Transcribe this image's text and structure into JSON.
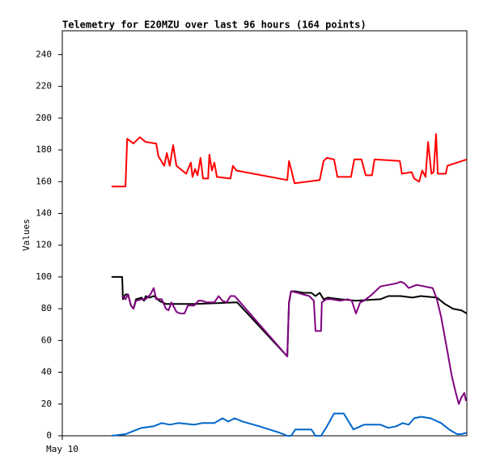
{
  "chart_data": {
    "type": "line",
    "title": "Telemetry for E20MZU over last 96 hours (164 points)",
    "y_label": "Values",
    "xlim": [
      0,
      96
    ],
    "xticks": [
      {
        "value": 0,
        "label": "May 10"
      }
    ],
    "ylim": [
      0,
      255
    ],
    "yticks": [
      0,
      20,
      40,
      60,
      80,
      100,
      120,
      140,
      160,
      180,
      200,
      220,
      240
    ],
    "grid": false,
    "series": [
      {
        "color": "#ff0000",
        "x": [
          11.7,
          15.0,
          15.4,
          16.9,
          18.4,
          19.8,
          22.3,
          22.8,
          24.2,
          24.8,
          25.5,
          26.3,
          27.1,
          29.4,
          30.5,
          30.9,
          31.5,
          32.1,
          32.8,
          33.4,
          34.6,
          34.9,
          35.5,
          36.1,
          36.7,
          39.9,
          40.5,
          41.3,
          53.4,
          53.8,
          54.3,
          55.1,
          61.1,
          62.0,
          62.8,
          64.5,
          65.3,
          68.5,
          69.3,
          71.0,
          72.0,
          73.5,
          74.1,
          80.1,
          80.6,
          82.9,
          83.5,
          84.7,
          85.4,
          86.2,
          86.8,
          87.6,
          88.1,
          88.7,
          89.1,
          91.0,
          91.4,
          93.7,
          96.0
        ],
        "values": [
          157,
          157,
          187,
          184,
          188,
          185,
          184,
          176,
          170,
          178,
          170,
          183,
          170,
          165,
          172,
          163,
          168,
          164,
          175,
          162,
          162,
          177,
          167,
          172,
          163,
          162,
          170,
          167,
          161,
          173,
          168,
          159,
          161,
          173,
          175,
          174,
          163,
          163,
          174,
          174,
          164,
          164,
          174,
          173,
          165,
          166,
          162,
          160,
          167,
          163,
          185,
          165,
          166,
          190,
          165,
          165,
          170,
          172,
          174
        ]
      },
      {
        "color": "#000000",
        "x": [
          11.7,
          14.2,
          14.4,
          15.0,
          15.6,
          16.3,
          16.9,
          17.5,
          18.8,
          19.4,
          19.8,
          20.7,
          21.7,
          22.3,
          23.0,
          23.8,
          24.6,
          31.3,
          41.5,
          53.4,
          53.8,
          54.3,
          55.3,
          57.2,
          59.1,
          60.1,
          61.1,
          62.0,
          63.0,
          65.9,
          69.7,
          75.5,
          77.4,
          80.3,
          83.1,
          85.1,
          88.9,
          90.8,
          92.7,
          94.7,
          96.0
        ],
        "values": [
          100,
          100,
          86,
          89,
          89,
          82,
          80,
          86,
          87,
          85,
          88,
          87,
          88,
          87,
          85,
          84,
          83,
          83,
          84,
          50,
          84,
          91,
          91,
          90,
          90,
          88,
          90,
          86,
          87,
          86,
          85,
          86,
          88,
          88,
          87,
          88,
          87,
          83,
          80,
          79,
          77
        ]
      },
      {
        "color": "#800080",
        "x": [
          14.2,
          15.0,
          15.6,
          16.3,
          16.9,
          17.5,
          18.8,
          19.8,
          20.9,
          21.7,
          22.3,
          23.6,
          24.6,
          25.2,
          25.9,
          26.7,
          27.1,
          28.0,
          29.0,
          29.8,
          31.3,
          32.3,
          33.2,
          34.2,
          36.1,
          37.1,
          38.0,
          39.0,
          39.9,
          40.9,
          41.9,
          53.4,
          53.8,
          54.3,
          55.9,
          57.2,
          58.6,
          59.7,
          60.1,
          61.4,
          61.6,
          62.6,
          63.9,
          65.9,
          67.8,
          68.7,
          69.7,
          70.7,
          71.6,
          73.5,
          75.5,
          77.4,
          79.3,
          80.3,
          81.2,
          82.2,
          84.1,
          86.0,
          87.9,
          88.9,
          89.9,
          91.2,
          92.4,
          93.3,
          94.1,
          94.7,
          95.4,
          95.8
        ],
        "values": [
          88,
          86,
          89,
          82,
          80,
          85,
          86,
          86,
          89,
          93,
          86,
          86,
          80,
          79,
          84,
          80,
          78,
          77,
          77,
          82,
          82,
          85,
          85,
          84,
          84,
          88,
          85,
          84,
          88,
          88,
          85,
          50,
          84,
          91,
          90,
          89,
          88,
          85,
          66,
          66,
          84,
          86,
          86,
          85,
          86,
          85,
          77,
          84,
          85,
          89,
          94,
          95,
          96,
          97,
          96,
          93,
          95,
          94,
          93,
          86,
          75,
          56,
          38,
          28,
          20,
          24,
          27,
          22
        ]
      },
      {
        "color": "#0066cc",
        "x": [
          11.7,
          15.0,
          16.9,
          18.8,
          21.7,
          23.6,
          25.5,
          27.5,
          31.3,
          33.2,
          36.1,
          38.0,
          39.4,
          40.9,
          42.8,
          46.7,
          51.5,
          53.4,
          54.3,
          55.3,
          59.1,
          60.1,
          61.4,
          62.6,
          64.5,
          66.8,
          69.1,
          71.6,
          75.5,
          77.4,
          79.3,
          80.8,
          82.2,
          83.5,
          85.1,
          87.4,
          89.9,
          91.8,
          93.7,
          94.7,
          96.0
        ],
        "values": [
          0,
          1,
          3,
          5,
          6,
          8,
          7,
          8,
          7,
          8,
          8,
          11,
          9,
          11,
          9,
          6,
          2,
          0,
          0,
          4,
          4,
          0,
          0,
          5,
          14,
          14,
          4,
          7,
          7,
          5,
          6,
          8,
          7,
          11,
          12,
          11,
          8,
          4,
          1,
          1,
          2
        ]
      }
    ]
  }
}
